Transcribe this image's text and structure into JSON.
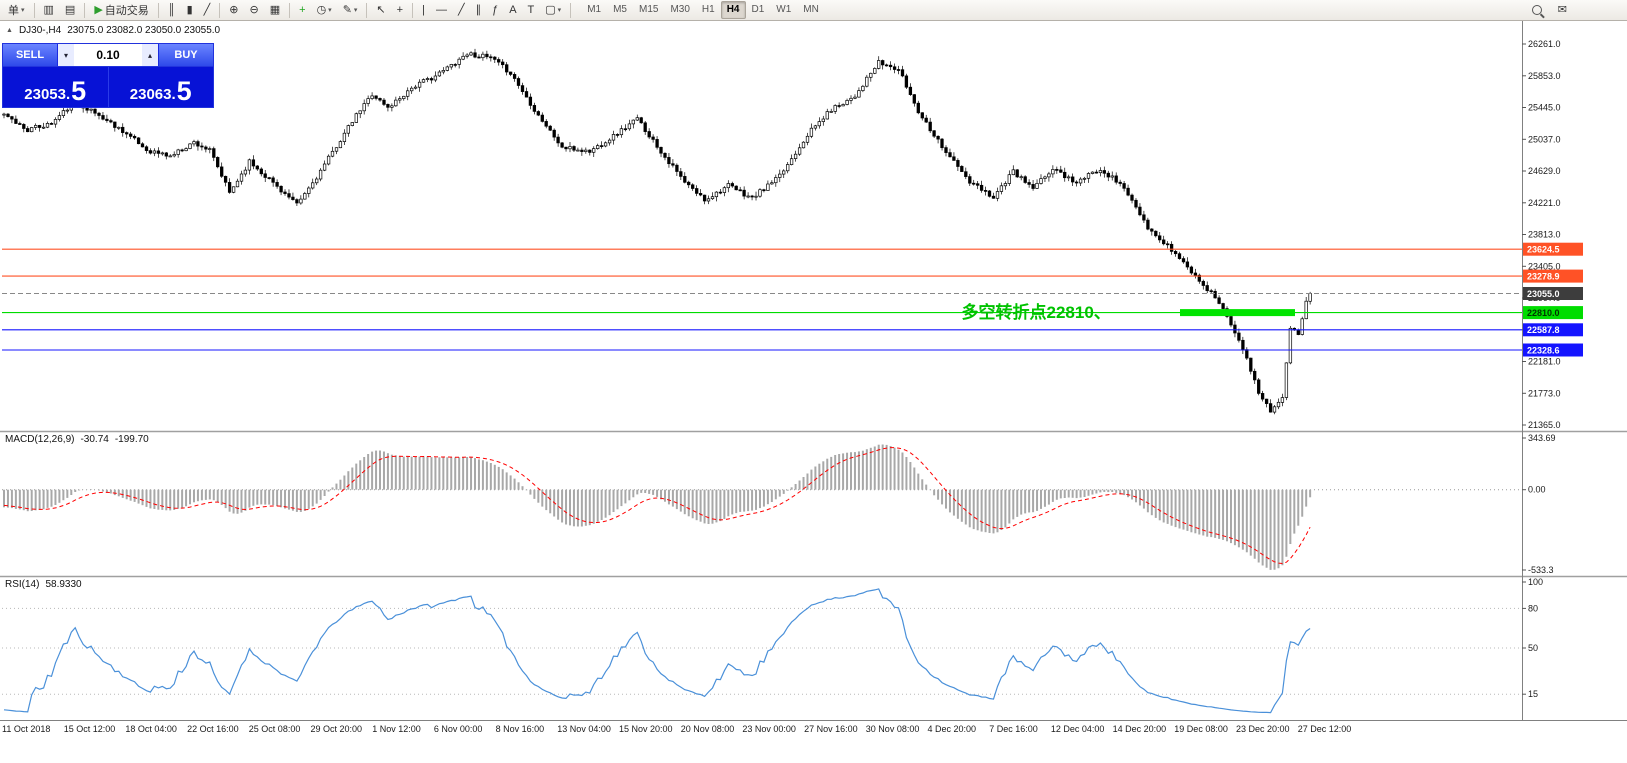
{
  "colors": {
    "level_orange": "#ff5226",
    "level_green": "#00dd00",
    "level_blue": "#1414ff",
    "bid_badge_bg": "#3d3d3d",
    "macd_histogram": "#a8a8a8",
    "macd_signal": "#ff0000",
    "rsi_line": "#4a90d9",
    "annotation_green": "#00c200",
    "trade_panel_blue": "#0712d6",
    "buy_sell_button_blue": "#2e49ea"
  },
  "toolbar": {
    "groups": [
      [
        {
          "name": "new-order-button",
          "label": "单",
          "arrow": true
        }
      ],
      [
        {
          "name": "chart-window-icon",
          "glyph": "▥"
        },
        {
          "name": "market-watch-icon",
          "glyph": "▤"
        }
      ],
      [
        {
          "name": "autotrading-button",
          "glyph": "▶",
          "glyph_color": "#2e9e2e",
          "label": "自动交易"
        }
      ],
      [
        {
          "name": "bar-chart-type-button",
          "glyph": "║"
        },
        {
          "name": "candlestick-type-button",
          "glyph": "▮"
        },
        {
          "name": "line-chart-type-button",
          "glyph": "╱"
        }
      ],
      [
        {
          "name": "zoom-in-button",
          "glyph": "⊕"
        },
        {
          "name": "zoom-out-button",
          "glyph": "⊖"
        },
        {
          "name": "tile-windows-button",
          "glyph": "▦"
        }
      ],
      [
        {
          "name": "indicators-button",
          "glyph": "+",
          "glyph_color": "#1fa51f"
        },
        {
          "name": "periods-button",
          "glyph": "◷",
          "arrow": true
        },
        {
          "name": "templates-button",
          "glyph": "✎",
          "arrow": true
        }
      ],
      [
        {
          "name": "cursor-button",
          "glyph": "↖"
        },
        {
          "name": "crosshair-button",
          "glyph": "+"
        }
      ],
      [
        {
          "name": "vertical-line-button",
          "glyph": "|"
        },
        {
          "name": "horizontal-line-button",
          "glyph": "—"
        },
        {
          "name": "trendline-button",
          "glyph": "╱"
        },
        {
          "name": "channel-button",
          "glyph": "∥"
        },
        {
          "name": "fibonacci-button",
          "glyph": "ƒ"
        },
        {
          "name": "text-button",
          "glyph": "A"
        },
        {
          "name": "label-button",
          "glyph": "T"
        },
        {
          "name": "shapes-button",
          "glyph": "▢",
          "arrow": true
        }
      ]
    ],
    "timeframes": [
      "M1",
      "M5",
      "M15",
      "M30",
      "H1",
      "H4",
      "D1",
      "W1",
      "MN"
    ],
    "active_timeframe": "H4",
    "right": [
      {
        "name": "search-button",
        "shape": "magnifier"
      },
      {
        "name": "chat-button",
        "glyph": "✉"
      }
    ]
  },
  "symbol_header": {
    "collapse_icon": "▲",
    "symbol": "DJ30-,H4",
    "quotes": "23075.0 23082.0 23050.0 23055.0"
  },
  "trade_panel": {
    "sell_label": "SELL",
    "buy_label": "BUY",
    "volume": "0.10",
    "step_down_glyph": "▾",
    "step_up_glyph": "▴",
    "sell_price_base": "23053.",
    "sell_price_big": "5",
    "buy_price_base": "23063.",
    "buy_price_big": "5"
  },
  "chart_data": {
    "type": "candlestick",
    "symbol": "DJ30-",
    "timeframe": "H4",
    "bars": 331,
    "price_axis": {
      "min": 21365,
      "max": 26261,
      "ticks": [
        "26261.0",
        "25853.0",
        "25445.0",
        "25037.0",
        "24629.0",
        "24221.0",
        "23813.0",
        "23405.0",
        "22997.0",
        "22589.0",
        "22181.0",
        "21773.0",
        "21365.0"
      ]
    },
    "close_waypoints": [
      [
        0,
        25340
      ],
      [
        6,
        25160
      ],
      [
        12,
        25240
      ],
      [
        18,
        25530
      ],
      [
        24,
        25340
      ],
      [
        30,
        25150
      ],
      [
        36,
        24900
      ],
      [
        42,
        24820
      ],
      [
        48,
        25000
      ],
      [
        52,
        24890
      ],
      [
        57,
        24350
      ],
      [
        62,
        24750
      ],
      [
        68,
        24480
      ],
      [
        74,
        24190
      ],
      [
        79,
        24550
      ],
      [
        84,
        24950
      ],
      [
        89,
        25340
      ],
      [
        93,
        25620
      ],
      [
        97,
        25440
      ],
      [
        103,
        25700
      ],
      [
        110,
        25880
      ],
      [
        117,
        26140
      ],
      [
        123,
        26080
      ],
      [
        128,
        25890
      ],
      [
        134,
        25420
      ],
      [
        141,
        24930
      ],
      [
        148,
        24880
      ],
      [
        154,
        25080
      ],
      [
        160,
        25300
      ],
      [
        166,
        24880
      ],
      [
        172,
        24480
      ],
      [
        177,
        24260
      ],
      [
        183,
        24440
      ],
      [
        189,
        24280
      ],
      [
        196,
        24560
      ],
      [
        203,
        25100
      ],
      [
        209,
        25420
      ],
      [
        215,
        25600
      ],
      [
        221,
        26020
      ],
      [
        226,
        25930
      ],
      [
        231,
        25400
      ],
      [
        237,
        24950
      ],
      [
        244,
        24480
      ],
      [
        250,
        24300
      ],
      [
        255,
        24620
      ],
      [
        260,
        24400
      ],
      [
        265,
        24660
      ],
      [
        271,
        24480
      ],
      [
        277,
        24660
      ],
      [
        283,
        24420
      ],
      [
        289,
        23880
      ],
      [
        295,
        23620
      ],
      [
        301,
        23280
      ],
      [
        307,
        22950
      ],
      [
        312,
        22480
      ],
      [
        317,
        21780
      ],
      [
        320,
        21560
      ],
      [
        323,
        21700
      ],
      [
        325,
        22600
      ],
      [
        327,
        22520
      ],
      [
        329,
        22980
      ],
      [
        330,
        23055
      ]
    ],
    "levels": [
      {
        "text": "23624.5",
        "price": 23624.5,
        "color": "#ff5226",
        "text_color": "#ffffff",
        "style": "solid"
      },
      {
        "text": "23278.9",
        "price": 23278.9,
        "color": "#ff5226",
        "text_color": "#ffffff",
        "style": "solid"
      },
      {
        "text": "23055.0",
        "price": 23055.0,
        "color": "#3d3d3d",
        "line_color": "#888888",
        "text_color": "#ffffff",
        "style": "dashed",
        "role": "bid"
      },
      {
        "text": "22810.0",
        "price": 22810.0,
        "color": "#00dd00",
        "text_color": "#003300",
        "style": "solid",
        "highlight_segment": {
          "x1_frac": 0.777,
          "x2_frac": 0.853,
          "thickness": 7
        }
      },
      {
        "text": "22587.8",
        "price": 22587.8,
        "color": "#1414ff",
        "text_color": "#ffffff",
        "style": "solid"
      },
      {
        "text": "22328.6",
        "price": 22328.6,
        "color": "#1414ff",
        "text_color": "#ffffff",
        "style": "solid"
      }
    ],
    "annotation": {
      "text": "多空转折点22810、",
      "color": "#00c200",
      "x_frac": 0.633,
      "anchor_price": 22810
    },
    "indicators": [
      {
        "name": "MACD",
        "label": "MACD(12,26,9)",
        "value_macd": "-30.74",
        "value_signal": "-199.70",
        "histogram_color": "#a8a8a8",
        "signal_color": "#ff0000",
        "axis_ticks": [
          {
            "label": "343.69",
            "value": 343.69
          },
          {
            "label": "0.00",
            "value": 0
          },
          {
            "label": "-533.3",
            "value": -533.3
          }
        ]
      },
      {
        "name": "RSI",
        "label": "RSI(14)",
        "value": "58.9330",
        "line_color": "#4a90d9",
        "axis_ticks": [
          {
            "label": "100",
            "value": 100
          },
          {
            "label": "80",
            "value": 80
          },
          {
            "label": "50",
            "value": 50
          },
          {
            "label": "15",
            "value": 15
          }
        ],
        "level_lines": [
          80,
          50,
          15
        ]
      }
    ],
    "time_axis_labels": [
      "11 Oct 2018",
      "15 Oct 12:00",
      "18 Oct 04:00",
      "22 Oct 16:00",
      "25 Oct 08:00",
      "29 Oct 20:00",
      "1 Nov 12:00",
      "6 Nov 00:00",
      "8 Nov 16:00",
      "13 Nov 04:00",
      "15 Nov 20:00",
      "20 Nov 08:00",
      "23 Nov 00:00",
      "27 Nov 16:00",
      "30 Nov 08:00",
      "4 Dec 20:00",
      "7 Dec 16:00",
      "12 Dec 04:00",
      "14 Dec 20:00",
      "19 Dec 08:00",
      "23 Dec 20:00",
      "27 Dec 12:00"
    ]
  }
}
